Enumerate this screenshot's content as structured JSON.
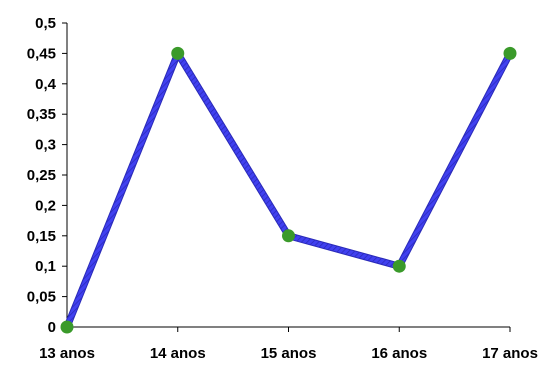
{
  "chart_data": {
    "type": "line",
    "categories": [
      "13 anos",
      "14 anos",
      "15 anos",
      "16 anos",
      "17 anos"
    ],
    "series": [
      {
        "values": [
          0,
          0.45,
          0.15,
          0.1,
          0.45
        ]
      }
    ],
    "ylim": [
      0,
      0.5
    ],
    "y_ticks": [
      "0",
      "0,05",
      "0,1",
      "0,15",
      "0,2",
      "0,25",
      "0,3",
      "0,35",
      "0,4",
      "0,45",
      "0,5"
    ],
    "grid": false,
    "colors": {
      "line": "#4040f0",
      "line_stripe": "#2a2ab8",
      "marker": "#3a9a2a",
      "axis": "#000000"
    }
  }
}
